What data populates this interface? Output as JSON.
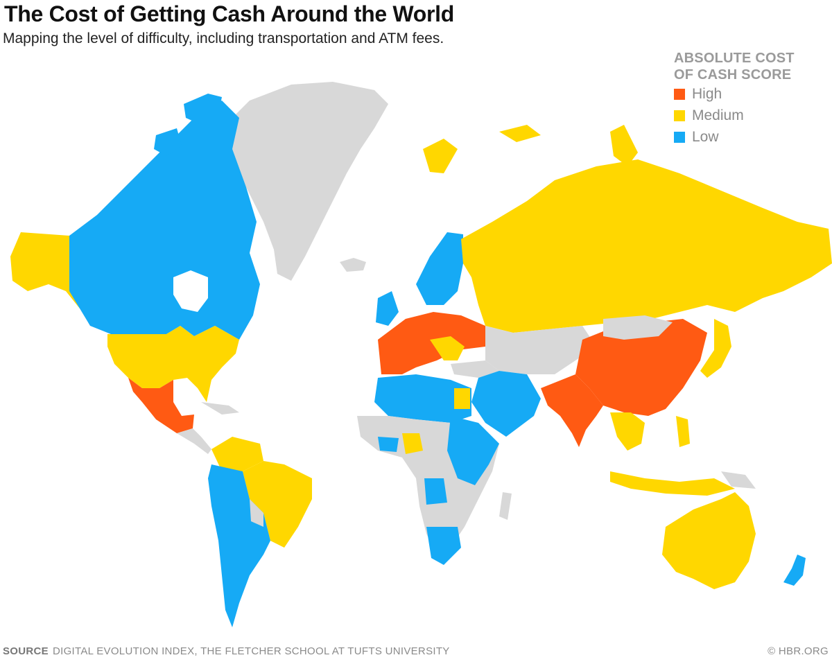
{
  "header": {
    "title": "The Cost of Getting Cash Around the World",
    "subtitle": "Mapping the level of difficulty, including transportation and ATM fees."
  },
  "legend": {
    "title_line1": "ABSOLUTE COST",
    "title_line2": "OF CASH SCORE",
    "items": [
      {
        "label": "High",
        "color": "#ff5a13"
      },
      {
        "label": "Medium",
        "color": "#ffd700"
      },
      {
        "label": "Low",
        "color": "#16aaf5"
      }
    ]
  },
  "colors": {
    "no_data": "#d8d8d8",
    "background": "#ffffff"
  },
  "footer": {
    "source_label": "SOURCE",
    "source_text": "DIGITAL EVOLUTION INDEX, THE FLETCHER SCHOOL AT TUFTS UNIVERSITY",
    "credit": "© HBR.ORG"
  }
}
